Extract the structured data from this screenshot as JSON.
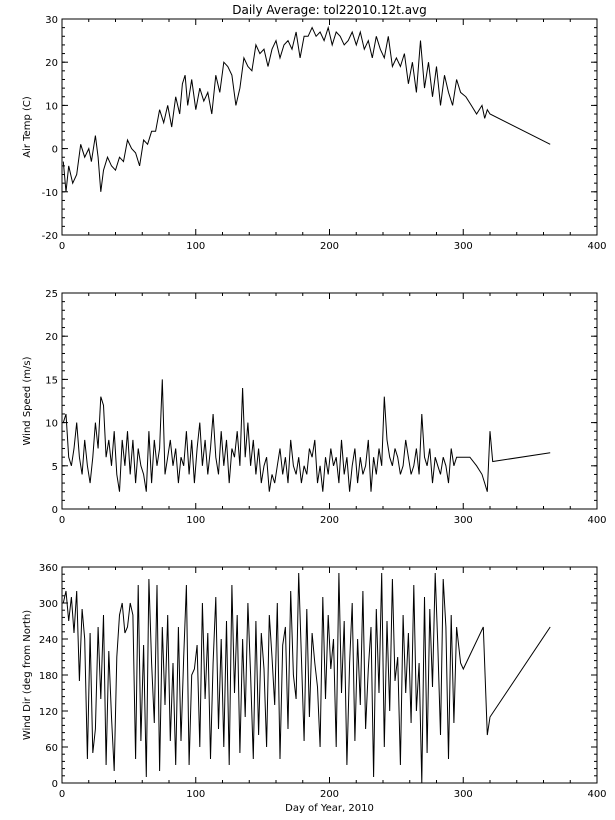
{
  "chart_data": [
    {
      "type": "line",
      "title": "Daily Average: tol22010.12t.avg",
      "xlabel": "",
      "ylabel": "Air Temp (C)",
      "xlim": [
        0,
        400
      ],
      "ylim": [
        -20,
        30
      ],
      "xticks": [
        0,
        100,
        200,
        300,
        400
      ],
      "yticks": [
        -20,
        -10,
        0,
        10,
        20,
        30
      ],
      "x": [
        1,
        3,
        5,
        8,
        11,
        14,
        17,
        20,
        22,
        25,
        27,
        29,
        31,
        34,
        37,
        40,
        43,
        46,
        49,
        52,
        55,
        58,
        61,
        64,
        67,
        70,
        73,
        76,
        79,
        82,
        85,
        88,
        90,
        92,
        94,
        97,
        100,
        103,
        106,
        109,
        112,
        115,
        118,
        121,
        124,
        127,
        130,
        133,
        136,
        139,
        142,
        145,
        148,
        151,
        154,
        157,
        160,
        163,
        166,
        169,
        172,
        175,
        178,
        181,
        184,
        187,
        190,
        193,
        196,
        199,
        202,
        205,
        208,
        211,
        214,
        217,
        220,
        223,
        226,
        229,
        232,
        235,
        238,
        241,
        244,
        247,
        250,
        253,
        256,
        259,
        262,
        265,
        268,
        271,
        274,
        277,
        280,
        283,
        286,
        289,
        292,
        295,
        298,
        302,
        306,
        310,
        314,
        316,
        318,
        320,
        365
      ],
      "y": [
        -3,
        -10,
        -4,
        -8,
        -6,
        1,
        -2,
        0,
        -3,
        3,
        -2,
        -10,
        -5,
        -2,
        -4,
        -5,
        -2,
        -3,
        2,
        0,
        -1,
        -4,
        2,
        1,
        4,
        4,
        9,
        6,
        10,
        5,
        12,
        8,
        15,
        17,
        10,
        16,
        9,
        14,
        11,
        13,
        8,
        17,
        13,
        20,
        19,
        17,
        10,
        14,
        21,
        19,
        18,
        24,
        22,
        23,
        19,
        23,
        25,
        21,
        24,
        25,
        23,
        27,
        21,
        26,
        26,
        28,
        26,
        27,
        25,
        28,
        24,
        27,
        26,
        24,
        25,
        27,
        24,
        27,
        23,
        25,
        21,
        26,
        23,
        21,
        26,
        19,
        21,
        19,
        22,
        15,
        20,
        13,
        25,
        14,
        20,
        12,
        19,
        10,
        17,
        13,
        10,
        16,
        13,
        12,
        10,
        8,
        10,
        7,
        9,
        8,
        1
      ]
    },
    {
      "type": "line",
      "title": "",
      "xlabel": "",
      "ylabel": "Wind Speed (m/s)",
      "xlim": [
        0,
        400
      ],
      "ylim": [
        0,
        25
      ],
      "xticks": [
        0,
        100,
        200,
        300,
        400
      ],
      "yticks": [
        0,
        5,
        10,
        15,
        20,
        25
      ],
      "x": [
        1,
        3,
        5,
        7,
        9,
        11,
        13,
        15,
        17,
        19,
        21,
        23,
        25,
        27,
        29,
        31,
        33,
        35,
        37,
        39,
        41,
        43,
        45,
        47,
        49,
        51,
        53,
        55,
        57,
        59,
        61,
        63,
        65,
        67,
        69,
        71,
        73,
        75,
        77,
        79,
        81,
        83,
        85,
        87,
        89,
        91,
        93,
        95,
        97,
        99,
        101,
        103,
        105,
        107,
        109,
        111,
        113,
        115,
        117,
        119,
        121,
        123,
        125,
        127,
        129,
        131,
        133,
        135,
        137,
        139,
        141,
        143,
        145,
        147,
        149,
        151,
        153,
        155,
        157,
        159,
        161,
        163,
        165,
        167,
        169,
        171,
        173,
        175,
        177,
        179,
        181,
        183,
        185,
        187,
        189,
        191,
        193,
        195,
        197,
        199,
        201,
        203,
        205,
        207,
        209,
        211,
        213,
        215,
        217,
        219,
        221,
        223,
        225,
        227,
        229,
        231,
        233,
        235,
        237,
        239,
        241,
        243,
        245,
        247,
        249,
        251,
        253,
        255,
        257,
        259,
        261,
        263,
        265,
        267,
        269,
        271,
        273,
        275,
        277,
        279,
        281,
        283,
        285,
        287,
        289,
        291,
        293,
        295,
        300,
        305,
        310,
        314,
        316,
        318,
        320,
        322,
        365
      ],
      "y": [
        10,
        11,
        6,
        5,
        7,
        10,
        6,
        4,
        8,
        5,
        3,
        6,
        10,
        7,
        13,
        12,
        6,
        8,
        5,
        9,
        4,
        2,
        8,
        5,
        9,
        4,
        8,
        3,
        7,
        5,
        4,
        2,
        9,
        3,
        8,
        5,
        7,
        15,
        4,
        6,
        8,
        5,
        7,
        3,
        6,
        5,
        9,
        4,
        8,
        3,
        7,
        10,
        5,
        8,
        4,
        7,
        11,
        6,
        4,
        9,
        5,
        8,
        3,
        7,
        6,
        9,
        5,
        14,
        6,
        10,
        5,
        8,
        4,
        7,
        3,
        5,
        6,
        2,
        4,
        3,
        5,
        7,
        4,
        6,
        3,
        8,
        5,
        4,
        6,
        3,
        5,
        4,
        7,
        6,
        8,
        3,
        5,
        2,
        6,
        4,
        7,
        5,
        6,
        3,
        8,
        4,
        6,
        2,
        5,
        7,
        3,
        6,
        4,
        5,
        8,
        2,
        6,
        4,
        7,
        5,
        13,
        8,
        6,
        5,
        7,
        6,
        4,
        5,
        8,
        6,
        4,
        5,
        7,
        4,
        11,
        6,
        5,
        7,
        3,
        6,
        5,
        4,
        6,
        5,
        3,
        7,
        5,
        6,
        6,
        6,
        5,
        4,
        3,
        2,
        9,
        5.5,
        6.5
      ]
    },
    {
      "type": "line",
      "title": "",
      "xlabel": "Day of Year, 2010",
      "ylabel": "Wind Dir (deg from North)",
      "xlim": [
        0,
        400
      ],
      "ylim": [
        0,
        360
      ],
      "xticks": [
        0,
        100,
        200,
        300,
        400
      ],
      "yticks": [
        0,
        60,
        120,
        180,
        240,
        300,
        360
      ],
      "x": [
        1,
        3,
        5,
        7,
        9,
        11,
        13,
        15,
        17,
        19,
        21,
        23,
        25,
        27,
        29,
        31,
        33,
        35,
        37,
        39,
        41,
        43,
        45,
        47,
        49,
        51,
        53,
        55,
        57,
        59,
        61,
        63,
        65,
        67,
        69,
        71,
        73,
        75,
        77,
        79,
        81,
        83,
        85,
        87,
        89,
        91,
        93,
        95,
        97,
        99,
        101,
        103,
        105,
        107,
        109,
        111,
        113,
        115,
        117,
        119,
        121,
        123,
        125,
        127,
        129,
        131,
        133,
        135,
        137,
        139,
        141,
        143,
        145,
        147,
        149,
        151,
        153,
        155,
        157,
        159,
        161,
        163,
        165,
        167,
        169,
        171,
        173,
        175,
        177,
        179,
        181,
        183,
        185,
        187,
        189,
        191,
        193,
        195,
        197,
        199,
        201,
        203,
        205,
        207,
        209,
        211,
        213,
        215,
        217,
        219,
        221,
        223,
        225,
        227,
        229,
        231,
        233,
        235,
        237,
        239,
        241,
        243,
        245,
        247,
        249,
        251,
        253,
        255,
        257,
        259,
        261,
        263,
        265,
        267,
        269,
        271,
        273,
        275,
        277,
        279,
        281,
        283,
        285,
        287,
        289,
        291,
        293,
        295,
        298,
        300,
        315,
        318,
        320,
        365
      ],
      "y": [
        300,
        320,
        270,
        310,
        250,
        320,
        170,
        290,
        240,
        40,
        250,
        50,
        90,
        260,
        140,
        280,
        30,
        220,
        110,
        20,
        210,
        280,
        300,
        250,
        260,
        300,
        280,
        40,
        330,
        70,
        230,
        10,
        340,
        200,
        100,
        330,
        20,
        260,
        130,
        280,
        70,
        200,
        30,
        260,
        70,
        210,
        330,
        30,
        180,
        190,
        230,
        60,
        300,
        140,
        250,
        40,
        200,
        310,
        90,
        240,
        60,
        270,
        30,
        330,
        150,
        280,
        50,
        240,
        110,
        300,
        180,
        40,
        270,
        80,
        250,
        190,
        60,
        280,
        210,
        130,
        300,
        40,
        230,
        260,
        90,
        320,
        180,
        140,
        350,
        210,
        70,
        290,
        110,
        250,
        200,
        160,
        60,
        310,
        140,
        280,
        190,
        240,
        60,
        350,
        150,
        270,
        30,
        200,
        300,
        70,
        240,
        130,
        320,
        90,
        190,
        260,
        10,
        290,
        150,
        350,
        60,
        270,
        120,
        340,
        170,
        210,
        30,
        280,
        150,
        250,
        100,
        330,
        120,
        200,
        0,
        310,
        50,
        290,
        160,
        350,
        230,
        80,
        340,
        260,
        40,
        280,
        100,
        260,
        200,
        190,
        260,
        80,
        110,
        260
      ]
    }
  ]
}
